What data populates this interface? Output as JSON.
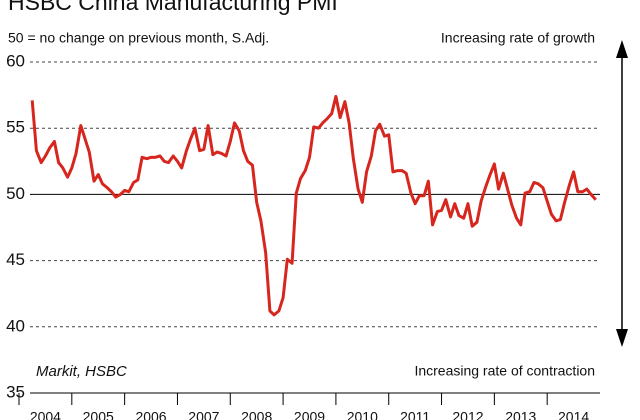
{
  "chart_data": {
    "type": "line",
    "title": "HSBC China Manufacturing PMI",
    "subtitle": "50 = no change on previous month, S.Adj.",
    "annotations": [
      "Increasing rate of growth",
      "Increasing rate of contraction",
      "Markit, HSBC"
    ],
    "x": [
      2004.25,
      2004.33,
      2004.42,
      2004.5,
      2004.58,
      2004.67,
      2004.75,
      2004.83,
      2004.92,
      2005.0,
      2005.08,
      2005.17,
      2005.25,
      2005.33,
      2005.42,
      2005.5,
      2005.58,
      2005.67,
      2005.75,
      2005.83,
      2005.92,
      2006.0,
      2006.08,
      2006.17,
      2006.25,
      2006.33,
      2006.42,
      2006.5,
      2006.58,
      2006.67,
      2006.75,
      2006.83,
      2006.92,
      2007.0,
      2007.08,
      2007.17,
      2007.25,
      2007.33,
      2007.42,
      2007.5,
      2007.58,
      2007.67,
      2007.75,
      2007.83,
      2007.92,
      2008.0,
      2008.08,
      2008.17,
      2008.25,
      2008.33,
      2008.42,
      2008.5,
      2008.58,
      2008.67,
      2008.75,
      2008.83,
      2008.92,
      2009.0,
      2009.08,
      2009.17,
      2009.25,
      2009.33,
      2009.42,
      2009.5,
      2009.58,
      2009.67,
      2009.75,
      2009.83,
      2009.92,
      2010.0,
      2010.08,
      2010.17,
      2010.25,
      2010.33,
      2010.42,
      2010.5,
      2010.58,
      2010.67,
      2010.75,
      2010.83,
      2010.92,
      2011.0,
      2011.08,
      2011.17,
      2011.25,
      2011.33,
      2011.42,
      2011.5,
      2011.58,
      2011.67,
      2011.75,
      2011.83,
      2011.92,
      2012.0,
      2012.08,
      2012.17,
      2012.25,
      2012.33,
      2012.42,
      2012.5,
      2012.58,
      2012.67,
      2012.75,
      2012.83,
      2012.92,
      2013.0,
      2013.08,
      2013.17,
      2013.25,
      2013.33,
      2013.42,
      2013.5,
      2013.58,
      2013.67,
      2013.75,
      2013.83,
      2013.92,
      2014.0,
      2014.08,
      2014.17,
      2014.25,
      2014.33,
      2014.42,
      2014.5,
      2014.58,
      2014.67,
      2014.75,
      2014.83,
      2014.92
    ],
    "values": [
      57.1,
      53.3,
      52.4,
      52.9,
      53.5,
      54.0,
      52.4,
      52.0,
      51.3,
      52.0,
      53.1,
      55.2,
      54.2,
      53.2,
      51.0,
      51.5,
      50.8,
      50.5,
      50.2,
      49.8,
      50.0,
      50.3,
      50.2,
      50.9,
      51.1,
      52.8,
      52.7,
      52.8,
      52.8,
      52.9,
      52.5,
      52.4,
      52.9,
      52.5,
      52.0,
      53.3,
      54.2,
      55.0,
      53.3,
      53.4,
      55.2,
      53.0,
      53.2,
      53.1,
      52.9,
      54.0,
      55.4,
      54.8,
      53.3,
      52.5,
      52.2,
      49.4,
      48.0,
      45.6,
      41.2,
      40.9,
      41.2,
      42.2,
      45.1,
      44.8,
      50.1,
      51.2,
      51.8,
      52.8,
      55.1,
      55.0,
      55.4,
      55.7,
      56.1,
      57.4,
      55.8,
      57.0,
      55.4,
      52.7,
      50.4,
      49.4,
      51.7,
      52.9,
      54.8,
      55.3,
      54.4,
      54.5,
      51.7,
      51.8,
      51.8,
      51.6,
      50.1,
      49.3,
      49.9,
      49.9,
      51.0,
      47.7,
      48.7,
      48.8,
      49.6,
      48.3,
      49.3,
      48.4,
      48.2,
      49.3,
      47.6,
      47.9,
      49.5,
      50.5,
      51.5,
      52.3,
      50.4,
      51.6,
      50.4,
      49.2,
      48.2,
      47.7,
      50.1,
      50.2,
      50.9,
      50.8,
      50.5,
      49.5,
      48.5,
      48.0,
      48.1,
      49.4,
      50.7,
      51.7,
      50.2,
      50.2,
      50.4,
      50.0,
      49.6
    ],
    "color": "#d7261e",
    "xlim": [
      2004,
      2015
    ],
    "xticks": [
      2004,
      2005,
      2006,
      2007,
      2008,
      2009,
      2010,
      2011,
      2012,
      2013,
      2014
    ],
    "ylim": [
      35,
      60
    ],
    "yticks": [
      35,
      40,
      45,
      50,
      55,
      60
    ],
    "grid": true,
    "reference_line": 50
  }
}
